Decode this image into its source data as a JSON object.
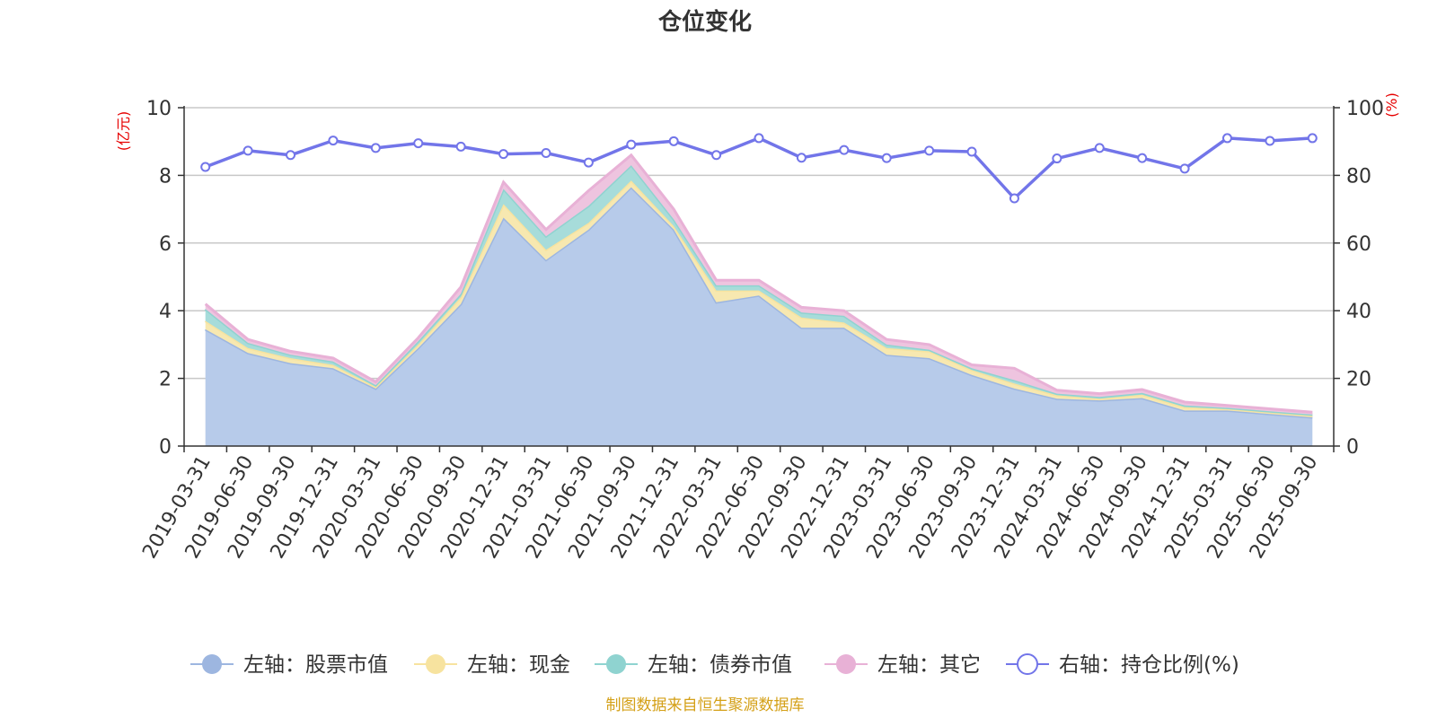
{
  "chart_data": {
    "type": "area",
    "title": "仓位变化",
    "left_axis_label": "(亿元)",
    "right_axis_label": "(%)",
    "left_ylim": [
      0,
      10
    ],
    "right_ylim": [
      0,
      100
    ],
    "left_ticks": [
      "0",
      "2",
      "4",
      "6",
      "8",
      "10"
    ],
    "right_ticks": [
      "0",
      "20",
      "40",
      "60",
      "80",
      "100"
    ],
    "grid": true,
    "categories": [
      "2019-03-31",
      "2019-06-30",
      "2019-09-30",
      "2019-12-31",
      "2020-03-31",
      "2020-06-30",
      "2020-09-30",
      "2020-12-31",
      "2021-03-31",
      "2021-06-30",
      "2021-09-30",
      "2021-12-31",
      "2022-03-31",
      "2022-06-30",
      "2022-09-30",
      "2022-12-31",
      "2023-03-31",
      "2023-06-30",
      "2023-09-30",
      "2023-12-31",
      "2024-03-31",
      "2024-06-30",
      "2024-09-30",
      "2024-12-31",
      "2025-03-31",
      "2025-06-30",
      "2025-09-30"
    ],
    "stacked_series": [
      {
        "name": "左轴：股票市值",
        "axis": "left",
        "color": "#9db6e0",
        "fill": "#b7cbea",
        "values": [
          3.45,
          2.75,
          2.45,
          2.3,
          1.7,
          2.9,
          4.2,
          6.75,
          5.5,
          6.4,
          7.65,
          6.4,
          4.25,
          4.45,
          3.5,
          3.5,
          2.7,
          2.6,
          2.1,
          1.7,
          1.4,
          1.35,
          1.42,
          1.05,
          1.05,
          0.95,
          0.85
        ]
      },
      {
        "name": "左轴：现金",
        "axis": "left",
        "color": "#f7e39f",
        "fill": "#f7e8b0",
        "values": [
          0.25,
          0.15,
          0.15,
          0.1,
          0.05,
          0.1,
          0.2,
          0.4,
          0.3,
          0.2,
          0.2,
          0.1,
          0.35,
          0.15,
          0.3,
          0.15,
          0.2,
          0.2,
          0.15,
          0.15,
          0.1,
          0.05,
          0.1,
          0.1,
          0.05,
          0.05,
          0.05
        ]
      },
      {
        "name": "左轴：债券市值",
        "axis": "left",
        "color": "#8fd3d0",
        "fill": "#a7dcda",
        "values": [
          0.35,
          0.15,
          0.1,
          0.1,
          0.05,
          0.1,
          0.1,
          0.45,
          0.4,
          0.5,
          0.45,
          0.2,
          0.15,
          0.15,
          0.15,
          0.2,
          0.1,
          0.05,
          0.05,
          0.1,
          0.05,
          0.05,
          0.05,
          0.05,
          0.03,
          0.03,
          0.03
        ]
      },
      {
        "name": "左轴：其它",
        "axis": "left",
        "color": "#e8b1d6",
        "fill": "#eec4df",
        "values": [
          0.15,
          0.1,
          0.1,
          0.1,
          0.1,
          0.1,
          0.2,
          0.2,
          0.2,
          0.45,
          0.3,
          0.3,
          0.15,
          0.15,
          0.15,
          0.15,
          0.15,
          0.15,
          0.1,
          0.35,
          0.1,
          0.1,
          0.1,
          0.1,
          0.07,
          0.07,
          0.07
        ]
      }
    ],
    "line_series": {
      "name": "右轴：持仓比例(%)",
      "axis": "right",
      "color": "#7275e9",
      "values": [
        82.5,
        87.3,
        86,
        90.3,
        88.1,
        89.5,
        88.5,
        86.3,
        86.6,
        83.8,
        89.1,
        90.1,
        86,
        91,
        85.2,
        87.5,
        85.1,
        87.3,
        87,
        73.2,
        85,
        88.1,
        85.1,
        82,
        91,
        90.2,
        91
      ]
    },
    "legend_position": "bottom",
    "footer": "制图数据来自恒生聚源数据库",
    "colors": {
      "axis": "#333333",
      "grid": "#c8c8c8",
      "axis_label": "#e60000",
      "footer": "#d4a017"
    }
  }
}
